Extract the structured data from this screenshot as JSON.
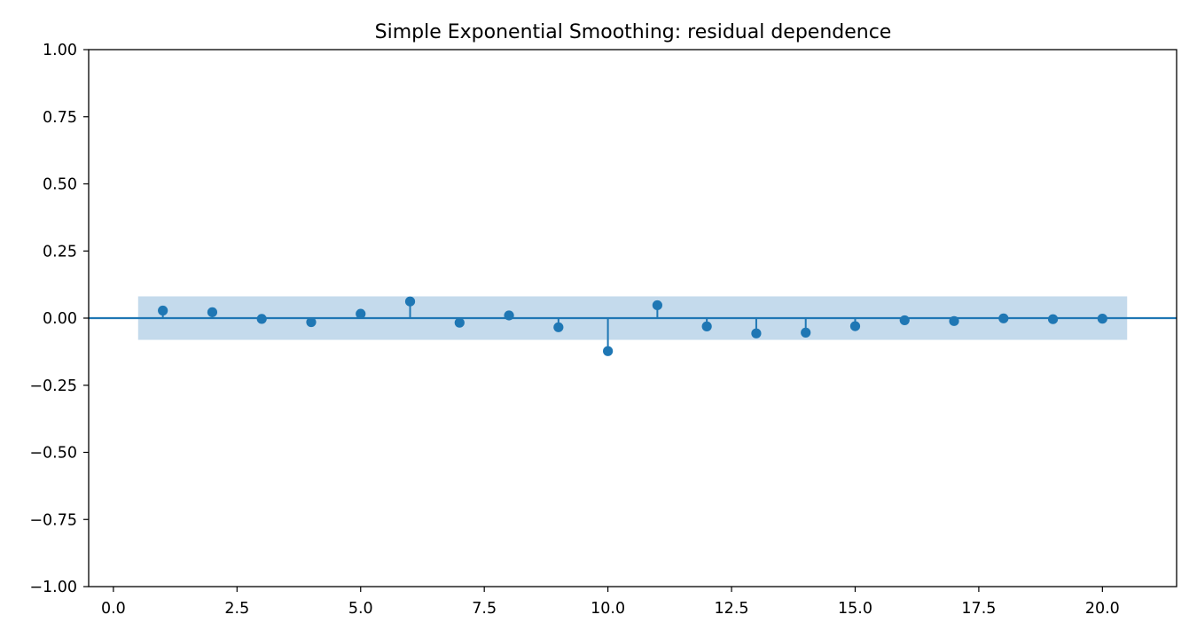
{
  "chart_data": {
    "type": "stem",
    "title": "Simple Exponential Smoothing: residual dependence",
    "xlabel": "",
    "ylabel": "",
    "xlim": [
      -0.5,
      21.5
    ],
    "ylim": [
      -1.0,
      1.0
    ],
    "x_ticks": [
      0.0,
      2.5,
      5.0,
      7.5,
      10.0,
      12.5,
      15.0,
      17.5,
      20.0
    ],
    "x_tick_labels": [
      "0.0",
      "2.5",
      "5.0",
      "7.5",
      "10.0",
      "12.5",
      "15.0",
      "17.5",
      "20.0"
    ],
    "y_ticks": [
      -1.0,
      -0.75,
      -0.5,
      -0.25,
      0.0,
      0.25,
      0.5,
      0.75,
      1.0
    ],
    "y_tick_labels": [
      "−1.00",
      "−0.75",
      "−0.50",
      "−0.25",
      "0.00",
      "0.25",
      "0.50",
      "0.75",
      "1.00"
    ],
    "grid": false,
    "legend": "none",
    "baseline": 0.0,
    "confidence_band": {
      "x_range": [
        0.5,
        20.5
      ],
      "lower": -0.081,
      "upper": 0.081
    },
    "x": [
      1,
      2,
      3,
      4,
      5,
      6,
      7,
      8,
      9,
      10,
      11,
      12,
      13,
      14,
      15,
      16,
      17,
      18,
      19,
      20
    ],
    "values": [
      0.028,
      0.022,
      -0.003,
      -0.015,
      0.016,
      0.062,
      -0.017,
      0.01,
      -0.034,
      -0.123,
      0.048,
      -0.031,
      -0.057,
      -0.054,
      -0.03,
      -0.008,
      -0.011,
      -0.001,
      -0.004,
      -0.002
    ],
    "colors": {
      "stem": "#1f77b4",
      "band": "#c4daec",
      "axes": "#000000"
    }
  }
}
